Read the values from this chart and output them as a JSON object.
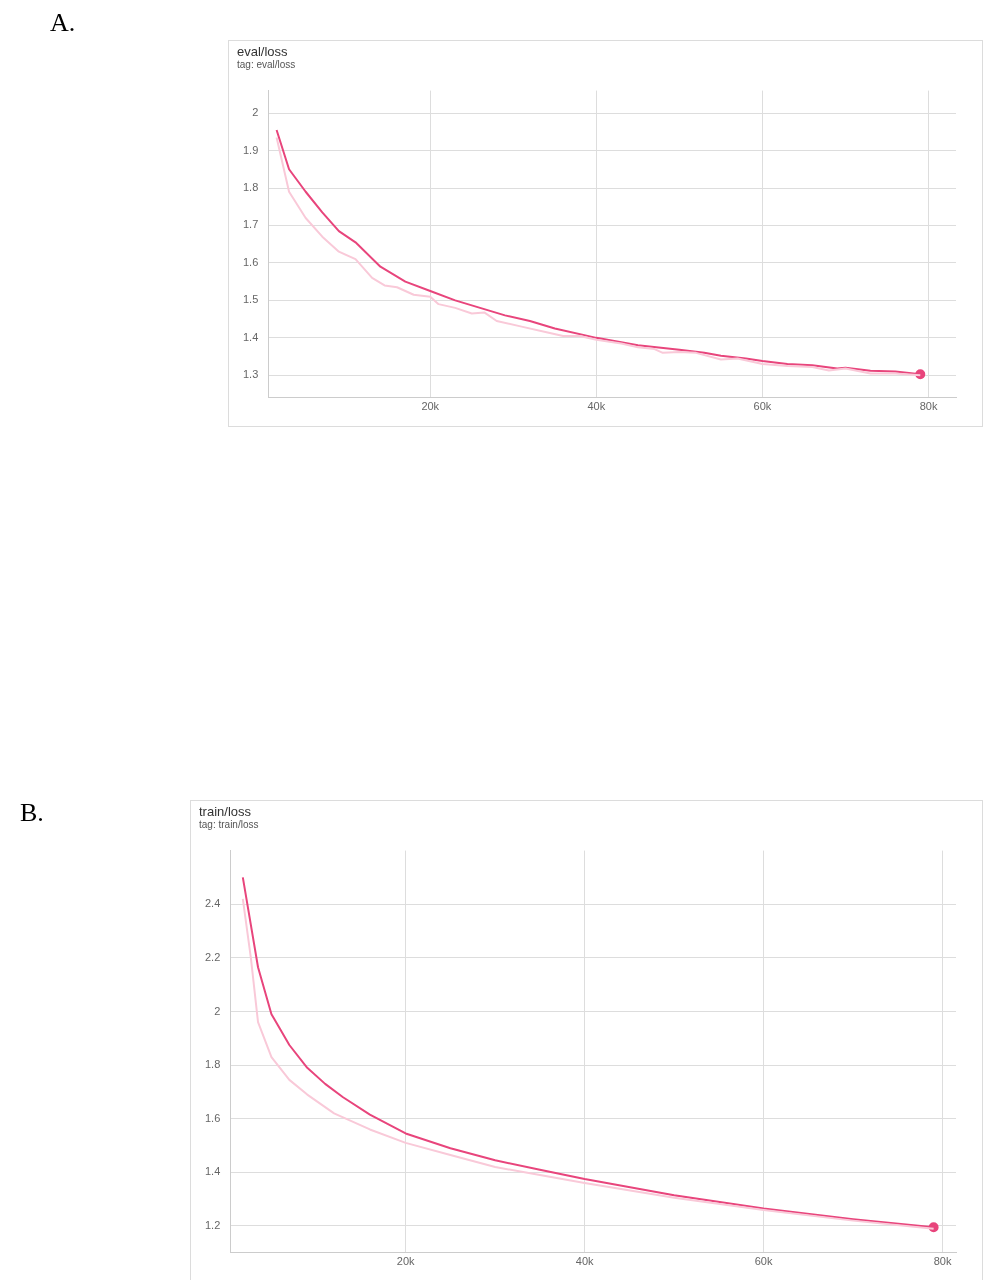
{
  "chart_data": [
    {
      "type": "line",
      "title": "eval/loss",
      "subtitle": "tag: eval/loss",
      "annotations": [
        "A."
      ],
      "grid": true,
      "xlim": [
        500,
        83300
      ],
      "ylim": [
        1.24,
        2.06
      ],
      "xticks": [
        {
          "value": 20000,
          "label": "20k"
        },
        {
          "value": 40000,
          "label": "40k"
        },
        {
          "value": 60000,
          "label": "60k"
        },
        {
          "value": 80000,
          "label": "80k"
        }
      ],
      "yticks": [
        1.3,
        1.4,
        1.5,
        1.6,
        1.7,
        1.8,
        1.9,
        2
      ],
      "series": [
        {
          "color": "#f9c9d8",
          "x": [
            1500,
            3000,
            5000,
            7000,
            9000,
            11000,
            13000,
            14500,
            16000,
            18000,
            20000,
            21000,
            23000,
            25000,
            26500,
            28000,
            31000,
            34000,
            36000,
            38000,
            40000,
            43000,
            45000,
            47000,
            48000,
            50000,
            52000,
            55000,
            57000,
            60000,
            63000,
            66000,
            68000,
            70000,
            73000,
            76000,
            79000
          ],
          "values": [
            1.935,
            1.79,
            1.72,
            1.67,
            1.63,
            1.61,
            1.56,
            1.54,
            1.535,
            1.515,
            1.51,
            1.49,
            1.48,
            1.465,
            1.468,
            1.445,
            1.43,
            1.415,
            1.405,
            1.405,
            1.395,
            1.385,
            1.375,
            1.37,
            1.36,
            1.362,
            1.36,
            1.342,
            1.345,
            1.33,
            1.325,
            1.322,
            1.313,
            1.318,
            1.305,
            1.305,
            1.3
          ]
        },
        {
          "color": "#e8457c",
          "x": [
            1500,
            3000,
            5000,
            7000,
            9000,
            11000,
            14000,
            17000,
            20000,
            23000,
            26000,
            29000,
            32000,
            35000,
            40000,
            45000,
            50000,
            53000,
            55000,
            58000,
            60000,
            63000,
            66000,
            69000,
            70000,
            73000,
            76000,
            79000
          ],
          "values": [
            1.955,
            1.85,
            1.79,
            1.735,
            1.685,
            1.655,
            1.59,
            1.55,
            1.525,
            1.5,
            1.48,
            1.46,
            1.445,
            1.425,
            1.4,
            1.38,
            1.368,
            1.36,
            1.352,
            1.345,
            1.338,
            1.33,
            1.327,
            1.318,
            1.32,
            1.312,
            1.31,
            1.303
          ]
        }
      ]
    },
    {
      "type": "line",
      "title": "train/loss",
      "subtitle": "tag: train/loss",
      "annotations": [
        "B."
      ],
      "grid": true,
      "xlim": [
        400,
        81500
      ],
      "ylim": [
        1.1,
        2.6
      ],
      "xticks": [
        {
          "value": 20000,
          "label": "20k"
        },
        {
          "value": 40000,
          "label": "40k"
        },
        {
          "value": 60000,
          "label": "60k"
        },
        {
          "value": 80000,
          "label": "80k"
        }
      ],
      "yticks": [
        1.2,
        1.4,
        1.6,
        1.8,
        2,
        2.2,
        2.4
      ],
      "series": [
        {
          "color": "#f9c9d8",
          "x": [
            1800,
            2700,
            3500,
            5000,
            7000,
            9000,
            12000,
            16000,
            20000,
            25000,
            30000,
            35000,
            40000,
            50000,
            60000,
            70000,
            79000
          ],
          "values": [
            2.42,
            2.2,
            1.96,
            1.83,
            1.745,
            1.69,
            1.62,
            1.56,
            1.51,
            1.465,
            1.42,
            1.39,
            1.36,
            1.305,
            1.26,
            1.22,
            1.19
          ]
        },
        {
          "color": "#e8457c",
          "x": [
            1800,
            3500,
            5000,
            7000,
            9000,
            11000,
            13000,
            16000,
            20000,
            25000,
            30000,
            35000,
            40000,
            50000,
            60000,
            70000,
            79000
          ],
          "values": [
            2.5,
            2.165,
            1.99,
            1.875,
            1.79,
            1.73,
            1.68,
            1.615,
            1.545,
            1.49,
            1.445,
            1.41,
            1.375,
            1.315,
            1.265,
            1.225,
            1.195
          ]
        }
      ]
    }
  ]
}
